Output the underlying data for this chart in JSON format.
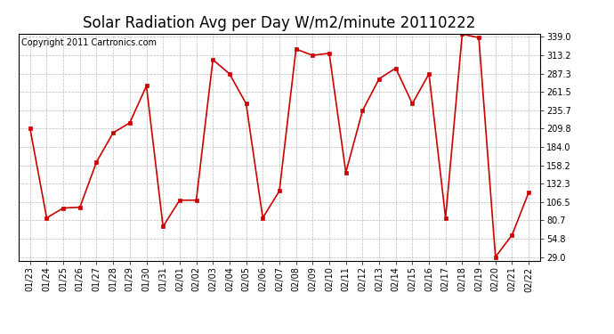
{
  "title": "Solar Radiation Avg per Day W/m2/minute 20110222",
  "copyright": "Copyright 2011 Cartronics.com",
  "dates": [
    "01/23",
    "01/24",
    "01/25",
    "01/26",
    "01/27",
    "01/28",
    "01/29",
    "01/30",
    "01/31",
    "02/01",
    "02/02",
    "02/03",
    "02/04",
    "02/05",
    "02/06",
    "02/07",
    "02/08",
    "02/09",
    "02/10",
    "02/11",
    "02/12",
    "02/13",
    "02/14",
    "02/15",
    "02/16",
    "02/17",
    "02/18",
    "02/19",
    "02/20",
    "02/21",
    "02/22"
  ],
  "values": [
    209.8,
    84.0,
    98.0,
    99.0,
    163.0,
    204.0,
    218.0,
    270.0,
    72.0,
    109.0,
    109.0,
    307.0,
    287.0,
    245.0,
    84.0,
    122.0,
    322.0,
    313.0,
    316.0,
    148.0,
    235.0,
    280.0,
    295.0,
    245.0,
    287.0,
    84.0,
    343.0,
    338.0,
    29.0,
    60.0,
    120.0
  ],
  "line_color": "#cc0000",
  "marker": "s",
  "marker_size": 3,
  "bg_color": "#ffffff",
  "grid_color": "#bbbbbb",
  "yticks": [
    29.0,
    54.8,
    80.7,
    106.5,
    132.3,
    158.2,
    184.0,
    209.8,
    235.7,
    261.5,
    287.3,
    313.2,
    339.0
  ],
  "ylim": [
    29.0,
    339.0
  ],
  "title_fontsize": 12,
  "copyright_fontsize": 7,
  "tick_fontsize": 7,
  "figwidth": 6.9,
  "figheight": 3.75,
  "dpi": 100
}
